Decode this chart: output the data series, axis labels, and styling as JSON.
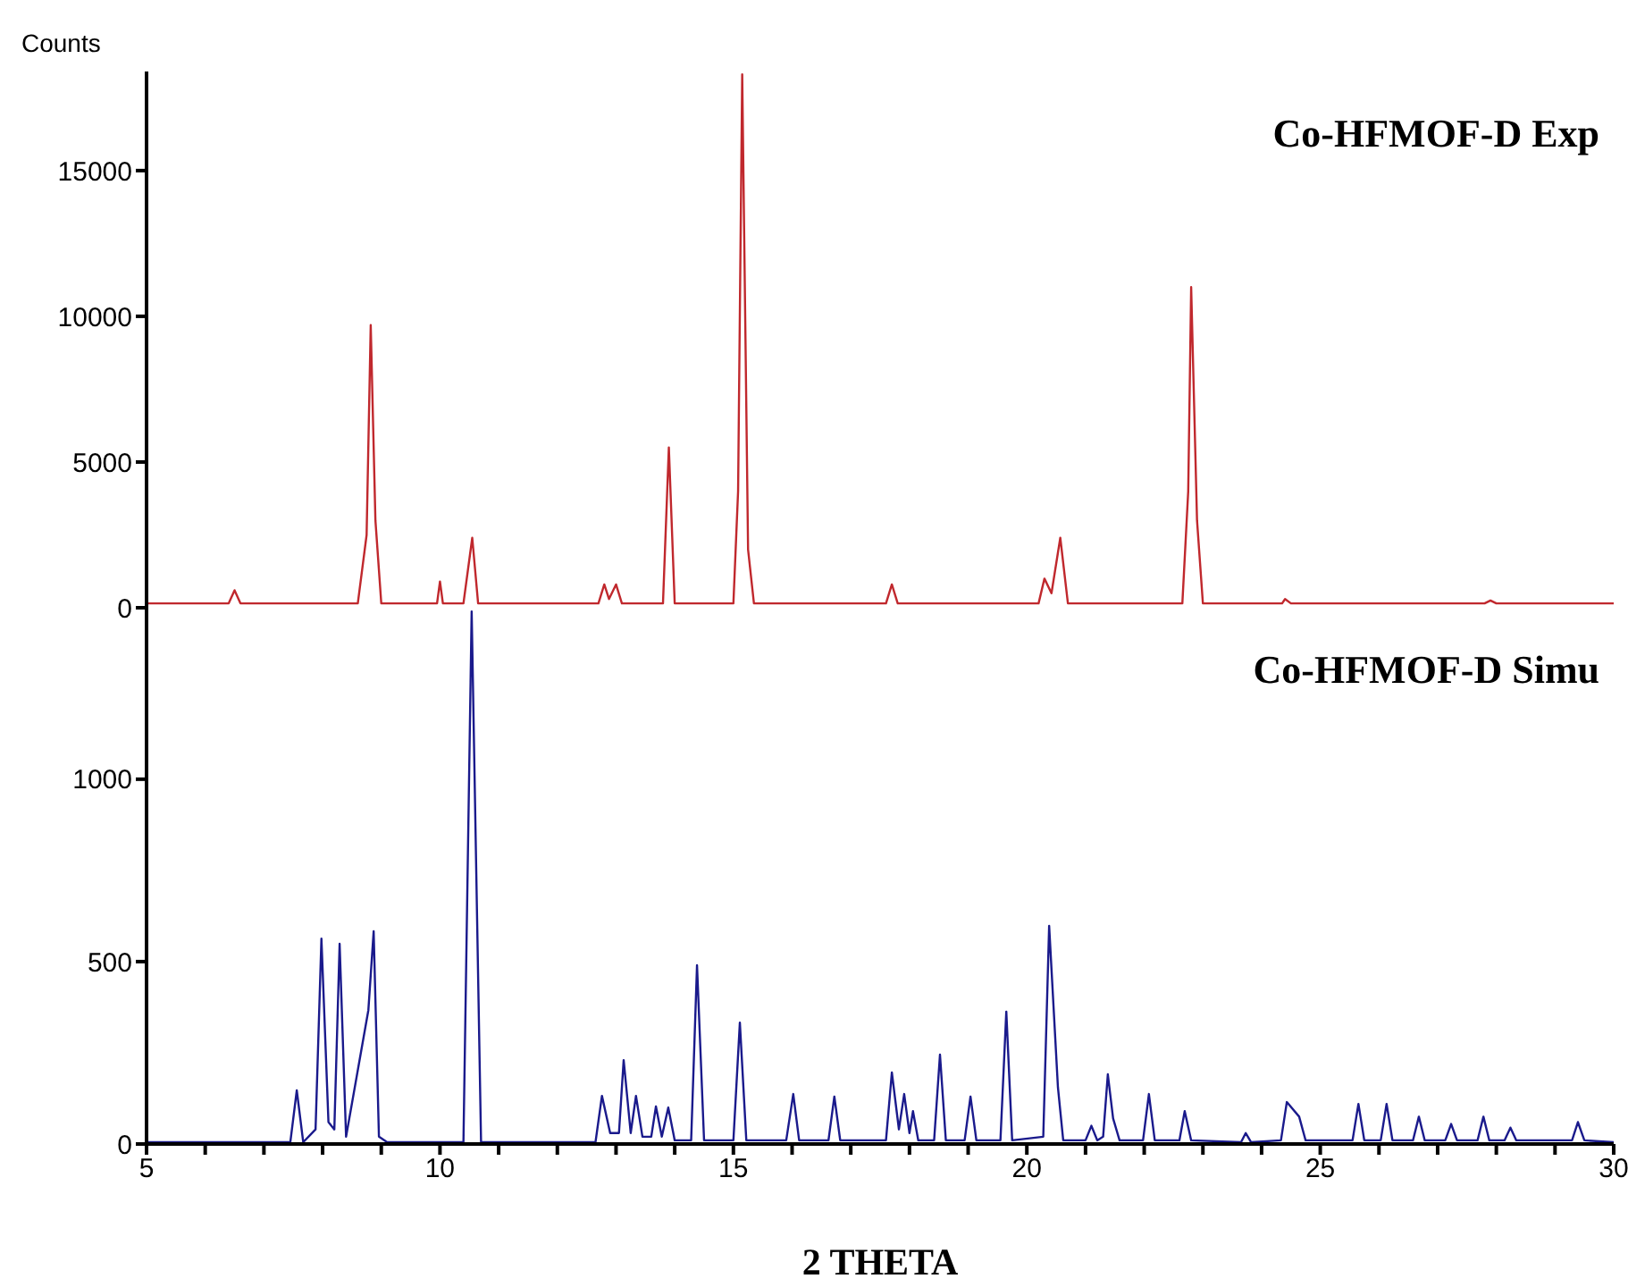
{
  "chart_data": [
    {
      "type": "line",
      "ylabel": "Counts",
      "xlim": [
        5,
        30
      ],
      "ylim": [
        0,
        18400
      ],
      "yticks": [
        0,
        5000,
        10000,
        15000
      ],
      "tick_labels": "y",
      "marker": "none",
      "line_style": "solid",
      "series": [
        {
          "name": "Co-HFMOF-D Exp",
          "color": "#c0282d",
          "x": [
            5.0,
            6.4,
            6.5,
            6.6,
            8.6,
            8.75,
            8.82,
            8.9,
            9.0,
            9.95,
            10.0,
            10.05,
            10.4,
            10.55,
            10.65,
            12.7,
            12.8,
            12.88,
            13.0,
            13.1,
            13.8,
            13.9,
            14.0,
            15.0,
            15.08,
            15.15,
            15.25,
            15.35,
            17.6,
            17.7,
            17.8,
            20.2,
            20.3,
            20.42,
            20.57,
            20.7,
            22.65,
            22.75,
            22.8,
            22.9,
            23.0,
            24.35,
            24.4,
            24.5,
            27.8,
            27.9,
            28.0,
            30.0
          ],
          "values": [
            150,
            150,
            600,
            150,
            150,
            2500,
            9700,
            3000,
            150,
            150,
            900,
            150,
            150,
            2400,
            150,
            150,
            800,
            300,
            800,
            150,
            150,
            5500,
            150,
            150,
            4000,
            18300,
            2000,
            150,
            150,
            800,
            150,
            150,
            1000,
            500,
            2400,
            150,
            150,
            4000,
            11000,
            3000,
            150,
            150,
            300,
            150,
            150,
            250,
            150,
            150
          ]
        }
      ]
    },
    {
      "type": "line",
      "xlabel": "2 THETA",
      "xlim": [
        5,
        30
      ],
      "xticks": [
        5,
        {
          "value": 6,
          "label": null
        },
        {
          "value": 7,
          "label": null
        },
        {
          "value": 8,
          "label": null
        },
        {
          "value": 9,
          "label": null
        },
        10,
        {
          "value": 11,
          "label": null
        },
        {
          "value": 12,
          "label": null
        },
        {
          "value": 13,
          "label": null
        },
        {
          "value": 14,
          "label": null
        },
        15,
        {
          "value": 16,
          "label": null
        },
        {
          "value": 17,
          "label": null
        },
        {
          "value": 18,
          "label": null
        },
        {
          "value": 19,
          "label": null
        },
        20,
        {
          "value": 21,
          "label": null
        },
        {
          "value": 22,
          "label": null
        },
        {
          "value": 23,
          "label": null
        },
        {
          "value": 24,
          "label": null
        },
        25,
        {
          "value": 26,
          "label": null
        },
        {
          "value": 27,
          "label": null
        },
        {
          "value": 28,
          "label": null
        },
        {
          "value": 29,
          "label": null
        },
        30
      ],
      "ylim": [
        0,
        1470
      ],
      "yticks": [
        0,
        500,
        1000
      ],
      "marker": "none",
      "line_style": "solid",
      "series": [
        {
          "name": "Co-HFMOF-D Simu",
          "color": "#1a1a8c",
          "x": [
            5.0,
            7.45,
            7.56,
            7.67,
            7.88,
            7.98,
            8.1,
            8.2,
            8.29,
            8.4,
            8.78,
            8.87,
            8.96,
            9.1,
            10.4,
            10.54,
            10.7,
            12.65,
            12.76,
            12.9,
            13.05,
            13.13,
            13.25,
            13.34,
            13.45,
            13.6,
            13.68,
            13.78,
            13.89,
            14.0,
            14.28,
            14.38,
            14.5,
            15.0,
            15.11,
            15.22,
            15.9,
            16.02,
            16.12,
            16.62,
            16.72,
            16.82,
            17.6,
            17.7,
            17.82,
            17.91,
            18.0,
            18.06,
            18.15,
            18.42,
            18.52,
            18.62,
            18.94,
            19.04,
            19.14,
            19.55,
            19.65,
            19.75,
            20.28,
            20.38,
            20.53,
            20.62,
            21.0,
            21.1,
            21.2,
            21.3,
            21.38,
            21.47,
            21.58,
            21.98,
            22.08,
            22.18,
            22.6,
            22.69,
            22.8,
            23.65,
            23.73,
            23.82,
            24.33,
            24.43,
            24.64,
            24.75,
            25.55,
            25.65,
            25.75,
            26.03,
            26.13,
            26.23,
            26.58,
            26.68,
            26.78,
            27.13,
            27.23,
            27.33,
            27.68,
            27.78,
            27.88,
            28.14,
            28.24,
            28.34,
            29.29,
            29.39,
            29.5,
            30.0
          ],
          "values": [
            5,
            5,
            147,
            5,
            40,
            563,
            60,
            40,
            549,
            20,
            367,
            583,
            20,
            5,
            5,
            1460,
            5,
            5,
            132,
            30,
            30,
            230,
            30,
            132,
            20,
            20,
            103,
            20,
            100,
            10,
            10,
            490,
            10,
            10,
            333,
            10,
            10,
            137,
            10,
            10,
            130,
            10,
            10,
            196,
            40,
            137,
            30,
            90,
            10,
            10,
            245,
            10,
            10,
            130,
            10,
            10,
            363,
            10,
            20,
            598,
            155,
            10,
            10,
            50,
            10,
            20,
            191,
            70,
            10,
            10,
            137,
            10,
            10,
            90,
            10,
            5,
            30,
            5,
            10,
            115,
            75,
            10,
            10,
            110,
            10,
            10,
            110,
            10,
            10,
            75,
            10,
            10,
            55,
            10,
            10,
            75,
            10,
            10,
            45,
            10,
            10,
            60,
            10,
            5
          ]
        }
      ]
    }
  ]
}
